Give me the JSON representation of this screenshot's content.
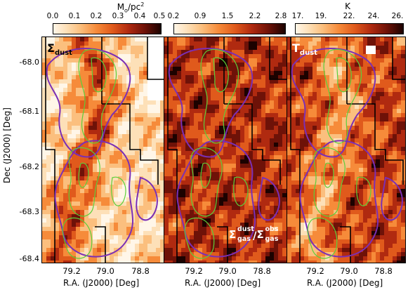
{
  "colorbars": [
    {
      "title_main": "M",
      "title_sub": "o",
      "title_rest": "/pc",
      "title_sup": "2",
      "ticks": [
        "0.0",
        "0.1",
        "0.2",
        "0.3",
        "0.4",
        "0.5"
      ],
      "range": [
        0.0,
        0.5
      ]
    },
    {
      "title_main": "",
      "ticks": [
        "0.2",
        "0.9",
        "1.5",
        "2.2",
        "2.8"
      ],
      "range": [
        0.2,
        2.8
      ]
    },
    {
      "title_main": "K",
      "ticks": [
        "17.",
        "19.",
        "22.",
        "24.",
        "26."
      ],
      "range": [
        17.0,
        26.0
      ]
    }
  ],
  "panels": [
    {
      "label_main": "Σ",
      "label_sub": "dust",
      "label_color": "#000000"
    },
    {
      "label_ratio": true,
      "num_sup": "dust",
      "num_sub": "gas",
      "den_sup": "obs",
      "den_sub": "gas",
      "label_color": "#ffffff"
    },
    {
      "label_main": "T",
      "label_sub": "dust",
      "label_color": "#ffffff"
    }
  ],
  "y_axis": {
    "title": "Dec (J2000) [Deg]",
    "ticks": [
      "-68.0",
      "-68.1",
      "-68.2",
      "-68.3",
      "-68.4"
    ]
  },
  "x_axis": {
    "title": "R.A. (J2000) [Deg]",
    "ticks": [
      "79.2",
      "79.0",
      "78.8"
    ]
  },
  "colors": {
    "contour_purple": "#7b2fb5",
    "contour_green": "#5ccf3a",
    "boundary": "#000000"
  }
}
